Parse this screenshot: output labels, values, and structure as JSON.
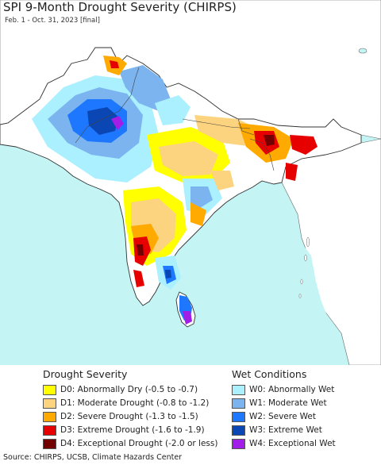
{
  "title": "SPI 9-Month Drought Severity (CHIRPS)",
  "subtitle": "Feb. 1 - Oct. 31, 2023 [final]",
  "source": "Source: CHIRPS, UCSB, Climate Hazards Center",
  "colors": {
    "ocean": "#c4f4f4",
    "land_outside": "#ffffff",
    "border": "#444444"
  },
  "legend": {
    "drought": {
      "title": "Drought Severity",
      "items": [
        {
          "label": "D0: Abnormally Dry (-0.5 to -0.7)",
          "color": "#ffff00"
        },
        {
          "label": "D1: Moderate Drought (-0.8 to -1.2)",
          "color": "#fcd37f"
        },
        {
          "label": "D2: Severe Drought (-1.3 to -1.5)",
          "color": "#ffaa00"
        },
        {
          "label": "D3: Extreme Drought (-1.6 to -1.9)",
          "color": "#e60000"
        },
        {
          "label": "D4: Exceptional Drought (-2.0 or less)",
          "color": "#730000"
        }
      ]
    },
    "wet": {
      "title": "Wet Conditions",
      "items": [
        {
          "label": "W0: Abnormally Wet",
          "color": "#aaf0ff"
        },
        {
          "label": "W1: Moderate Wet",
          "color": "#7cb4f0"
        },
        {
          "label": "W2: Severe Wet",
          "color": "#1e78ff"
        },
        {
          "label": "W3: Extreme Wet",
          "color": "#0a46b4"
        },
        {
          "label": "W4: Exceptional Wet",
          "color": "#a01ee6"
        }
      ]
    }
  }
}
